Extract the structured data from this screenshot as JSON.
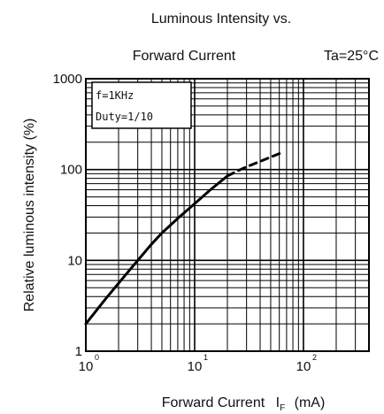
{
  "chart_data": {
    "type": "line",
    "title_line1": "Luminous Intensity vs.",
    "title_line2": "Forward Current",
    "condition": "Ta=25°C",
    "xlabel": "Forward Current",
    "xlabel_symbol": "I",
    "xlabel_subscript": "F",
    "xlabel_unit": "(mA)",
    "ylabel": "Relative luminous intensity (%)",
    "xscale": "log",
    "yscale": "log",
    "xlim": [
      1,
      400
    ],
    "ylim": [
      1,
      1000
    ],
    "grid": true,
    "x_ticks": [
      {
        "base": "10",
        "exp": "0",
        "value": 1
      },
      {
        "base": "10",
        "exp": "1",
        "value": 10
      },
      {
        "base": "10",
        "exp": "2",
        "value": 100
      }
    ],
    "y_ticks": [
      {
        "label": "1",
        "value": 1
      },
      {
        "label": "10",
        "value": 10
      },
      {
        "label": "100",
        "value": 100
      },
      {
        "label": "1000",
        "value": 1000
      }
    ],
    "annotation_lines": [
      "f=1KHz",
      "Duty=1/10"
    ],
    "series": [
      {
        "style": "solid",
        "x": [
          1.0,
          1.5,
          2,
          3,
          4,
          5,
          7,
          10,
          14,
          20
        ],
        "y": [
          2.0,
          3.7,
          5.6,
          10,
          15,
          20,
          29,
          42,
          60,
          85
        ]
      },
      {
        "style": "dashed",
        "x": [
          20,
          25,
          30,
          40,
          50,
          60
        ],
        "y": [
          85,
          97,
          107,
          123,
          137,
          150
        ]
      }
    ]
  }
}
